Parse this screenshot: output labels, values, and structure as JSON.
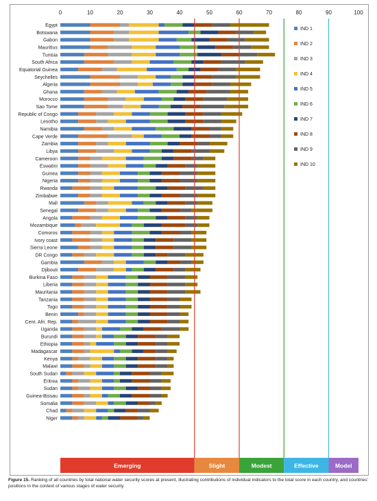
{
  "chart_data": {
    "type": "bar",
    "stacked": true,
    "orientation": "horizontal",
    "xlim": [
      0,
      100
    ],
    "x_ticks": [
      0,
      10,
      20,
      30,
      40,
      50,
      60,
      70,
      80,
      90,
      100
    ],
    "legend_position": "top-right",
    "colors": [
      "#4f81bd",
      "#e0823d",
      "#a5a5a5",
      "#f2c037",
      "#4472c4",
      "#70ad47",
      "#264478",
      "#9e480e",
      "#636363",
      "#997300"
    ],
    "series": [
      {
        "name": "IND 1"
      },
      {
        "name": "IND 2"
      },
      {
        "name": "IND 3"
      },
      {
        "name": "IND 4"
      },
      {
        "name": "IND 5"
      },
      {
        "name": "IND 6"
      },
      {
        "name": "IND 7"
      },
      {
        "name": "IND 8"
      },
      {
        "name": "IND 9"
      },
      {
        "name": "IND 10"
      }
    ],
    "categories": [
      "Egypt",
      "Botswana",
      "Gabon",
      "Mauritius",
      "Tunisia",
      "South Africa",
      "Equatorial Guinea",
      "Seychelles",
      "Algeria",
      "Ghana",
      "Morocco",
      "Sao Tome",
      "Republic of Congo",
      "Lesotho",
      "Namibia",
      "Cape Verde",
      "Zambia",
      "Libya",
      "Cameroon",
      "Eswatini",
      "Guinea",
      "Nigeria",
      "Rwanda",
      "Zimbabwe",
      "Mali",
      "Senegal",
      "Angola",
      "Mozambique",
      "Comoros",
      "Ivory coast",
      "Sierra Leone",
      "DR Congo",
      "Gambia",
      "Djibouti",
      "Burkina Faso",
      "Liberia",
      "Mauritania",
      "Tanzania",
      "Togo",
      "Benin",
      "Cent. Afri. Rep.",
      "Uganda",
      "Burundi",
      "Ethiopia",
      "Madagascar",
      "Kenya",
      "Malawi",
      "South Sudan",
      "Eritrea",
      "Sudan",
      "Guinea-Bissau",
      "Somalia",
      "Chad",
      "Niger"
    ],
    "values": [
      [
        10,
        10,
        3,
        10,
        2,
        6,
        4,
        6,
        6,
        13
      ],
      [
        10,
        8,
        5,
        10,
        10,
        4,
        6,
        6,
        6,
        4
      ],
      [
        10,
        8,
        5,
        10,
        6,
        5,
        6,
        6,
        6,
        8
      ],
      [
        10,
        6,
        8,
        8,
        8,
        6,
        6,
        6,
        6,
        6
      ],
      [
        8,
        8,
        8,
        8,
        8,
        6,
        8,
        6,
        6,
        6
      ],
      [
        8,
        10,
        6,
        6,
        8,
        6,
        4,
        6,
        8,
        6
      ],
      [
        6,
        8,
        5,
        10,
        10,
        4,
        4,
        6,
        6,
        8
      ],
      [
        10,
        10,
        6,
        6,
        5,
        4,
        4,
        6,
        8,
        8
      ],
      [
        10,
        10,
        6,
        5,
        6,
        4,
        4,
        6,
        6,
        7
      ],
      [
        8,
        6,
        5,
        6,
        8,
        6,
        4,
        6,
        8,
        6
      ],
      [
        8,
        8,
        6,
        6,
        6,
        4,
        4,
        6,
        8,
        7
      ],
      [
        8,
        8,
        5,
        6,
        6,
        4,
        4,
        6,
        8,
        8
      ],
      [
        6,
        6,
        6,
        6,
        6,
        6,
        6,
        6,
        6,
        7
      ],
      [
        6,
        6,
        4,
        6,
        8,
        6,
        6,
        6,
        6,
        5
      ],
      [
        8,
        6,
        4,
        6,
        8,
        6,
        6,
        6,
        4,
        4
      ],
      [
        6,
        10,
        8,
        4,
        6,
        6,
        4,
        6,
        4,
        4
      ],
      [
        6,
        6,
        4,
        6,
        8,
        6,
        4,
        6,
        4,
        6
      ],
      [
        6,
        6,
        6,
        6,
        6,
        4,
        4,
        6,
        6,
        5
      ],
      [
        6,
        4,
        4,
        8,
        6,
        6,
        4,
        6,
        4,
        4
      ],
      [
        6,
        4,
        6,
        6,
        6,
        4,
        4,
        6,
        4,
        6
      ],
      [
        6,
        4,
        4,
        6,
        6,
        4,
        4,
        6,
        6,
        6
      ],
      [
        6,
        4,
        4,
        6,
        6,
        4,
        4,
        6,
        6,
        6
      ],
      [
        4,
        6,
        4,
        4,
        8,
        6,
        4,
        6,
        6,
        4
      ],
      [
        6,
        4,
        4,
        6,
        6,
        4,
        4,
        6,
        6,
        6
      ],
      [
        8,
        4,
        4,
        8,
        4,
        4,
        4,
        6,
        4,
        5
      ],
      [
        6,
        6,
        4,
        6,
        4,
        4,
        4,
        6,
        4,
        7
      ],
      [
        4,
        6,
        4,
        6,
        6,
        6,
        4,
        6,
        4,
        4
      ],
      [
        5,
        2,
        5,
        8,
        4,
        4,
        6,
        8,
        4,
        4
      ],
      [
        4,
        6,
        4,
        4,
        6,
        6,
        4,
        6,
        4,
        5
      ],
      [
        4,
        6,
        4,
        4,
        6,
        4,
        4,
        6,
        6,
        5
      ],
      [
        6,
        4,
        4,
        4,
        6,
        4,
        4,
        6,
        6,
        5
      ],
      [
        4,
        4,
        4,
        6,
        6,
        4,
        4,
        4,
        6,
        6
      ],
      [
        8,
        6,
        4,
        4,
        6,
        4,
        4,
        4,
        4,
        4
      ],
      [
        6,
        6,
        6,
        4,
        2,
        4,
        4,
        6,
        4,
        5
      ],
      [
        4,
        4,
        4,
        4,
        6,
        4,
        4,
        6,
        6,
        4
      ],
      [
        4,
        4,
        4,
        4,
        6,
        4,
        4,
        6,
        6,
        4
      ],
      [
        4,
        4,
        4,
        4,
        6,
        4,
        4,
        6,
        6,
        5
      ],
      [
        4,
        4,
        4,
        4,
        6,
        4,
        4,
        6,
        4,
        4
      ],
      [
        4,
        4,
        4,
        4,
        6,
        4,
        4,
        6,
        4,
        4
      ],
      [
        6,
        2,
        4,
        4,
        6,
        4,
        4,
        6,
        4,
        3
      ],
      [
        4,
        2,
        6,
        4,
        6,
        4,
        4,
        6,
        4,
        3
      ],
      [
        4,
        4,
        4,
        2,
        6,
        4,
        4,
        6,
        6,
        3
      ],
      [
        4,
        4,
        4,
        2,
        4,
        4,
        4,
        6,
        4,
        4
      ],
      [
        4,
        4,
        2,
        2,
        6,
        4,
        4,
        6,
        4,
        4
      ],
      [
        4,
        4,
        2,
        8,
        2,
        4,
        4,
        4,
        4,
        3
      ],
      [
        4,
        2,
        4,
        4,
        4,
        4,
        4,
        6,
        4,
        2
      ],
      [
        4,
        4,
        2,
        4,
        4,
        4,
        4,
        6,
        4,
        2
      ],
      [
        2,
        2,
        4,
        4,
        6,
        2,
        4,
        6,
        4,
        4
      ],
      [
        4,
        2,
        4,
        4,
        4,
        2,
        4,
        6,
        4,
        3
      ],
      [
        4,
        2,
        4,
        4,
        4,
        4,
        4,
        4,
        4,
        3
      ],
      [
        4,
        4,
        2,
        4,
        2,
        4,
        4,
        6,
        4,
        2
      ],
      [
        4,
        4,
        4,
        4,
        2,
        4,
        4,
        4,
        2,
        2
      ],
      [
        2,
        2,
        4,
        4,
        4,
        2,
        4,
        4,
        4,
        3
      ],
      [
        4,
        2,
        2,
        4,
        2,
        2,
        4,
        6,
        2,
        2
      ]
    ],
    "thresholds": [
      45,
      60,
      75,
      90
    ],
    "stages": [
      {
        "label": "Emerging",
        "from": 0,
        "to": 45,
        "color": "#e03c2c"
      },
      {
        "label": "Slight",
        "from": 45,
        "to": 60,
        "color": "#e6883e"
      },
      {
        "label": "Modest",
        "from": 60,
        "to": 75,
        "color": "#3aa339"
      },
      {
        "label": "Effective",
        "from": 75,
        "to": 90,
        "color": "#3db6e6"
      },
      {
        "label": "Model",
        "from": 90,
        "to": 100,
        "color": "#9b6bc6"
      }
    ],
    "threshold_colors": [
      "#d84030",
      "#d84030",
      "#3aa339",
      "#3db6e6"
    ]
  },
  "caption": {
    "figure_label": "Figure 15.",
    "text": " Ranking of all countries by total national water security scores at present, illustrating contributions of individual indicators to the total score in each country, and countries' positions in the context of various stages of water security"
  }
}
